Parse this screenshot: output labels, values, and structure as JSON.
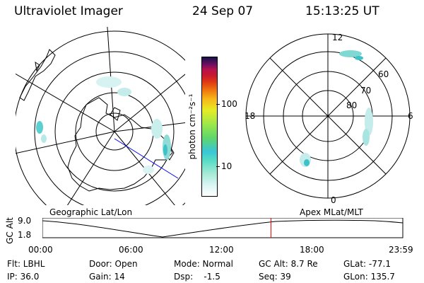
{
  "header": {
    "instrument": "Ultraviolet Imager",
    "date": "24 Sep 07",
    "time": "15:13:25 UT"
  },
  "colorbar": {
    "unit_label": "photon cm⁻²s⁻¹",
    "ticks": [
      "100",
      "10"
    ]
  },
  "right_map": {
    "hour_labels": {
      "top": "12",
      "left": "18",
      "right": "6",
      "bottom": "0"
    },
    "lat_labels": [
      "60",
      "70",
      "80"
    ]
  },
  "timeline": {
    "left_title": "Geographic Lat/Lon",
    "right_title": "Apex MLat/MLT",
    "y_axis_label": "GC Alt",
    "y_ticks": [
      "9.0",
      "1.8"
    ],
    "x_ticks": [
      "00:00",
      "06:00",
      "12:00",
      "18:00",
      "23:59"
    ],
    "marker_time": "15:13:25",
    "marker_color": "#ff0000"
  },
  "info": {
    "row1": {
      "flt": "Flt: LBHL",
      "door": "Door: Open",
      "mode": "Mode: Normal",
      "gcalt": "GC Alt: 8.7 Re",
      "glat": "GLat: -77.1"
    },
    "row2": {
      "ip": "IP: 36.0",
      "gain": "Gain: 14",
      "dsp": "Dsp:    -1.5",
      "seq": "Seq: 39",
      "glon": "GLon: 135.7"
    }
  },
  "colors": {
    "grid": "#000000",
    "aurora": "#7fd8d2",
    "aurora_bright": "#3cc2c8",
    "sun_line": "#0000ff",
    "marker": "#ff0000"
  }
}
